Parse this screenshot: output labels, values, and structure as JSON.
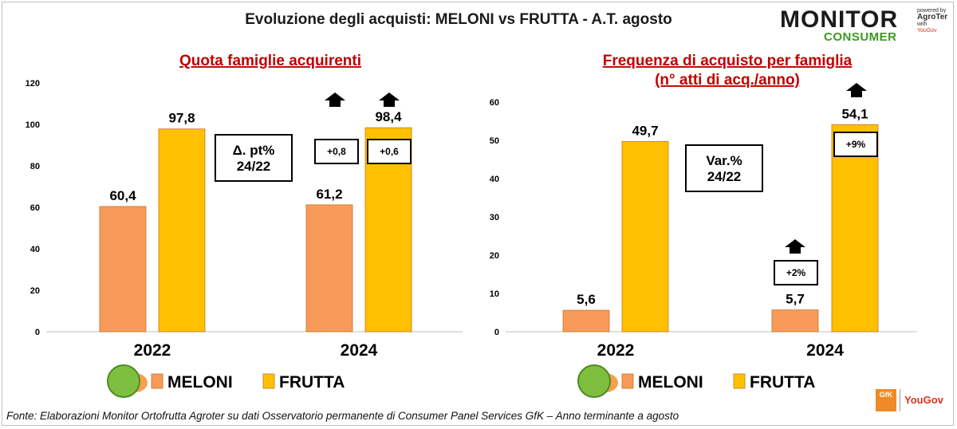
{
  "title": "Evoluzione degli acquisti: MELONI vs FRUTTA  - A.T. agosto",
  "logo": {
    "main": "MONITOR",
    "sub": "CONSUMER",
    "powered": "powered by",
    "brand": "AgroTer",
    "with": "with",
    "partner": "YouGov"
  },
  "footer": "Fonte: Elaborazioni Monitor Ortofrutta Agroter su dati Osservatorio permanente di Consumer Panel Services GfK  – Anno terminante a agosto",
  "brands": {
    "gfk": "GfK",
    "yougov": "YouGov"
  },
  "colors": {
    "meloni": "#f79a5a",
    "frutta": "#ffc000",
    "title_red": "#c00000"
  },
  "chart_data": [
    {
      "type": "bar",
      "title": "Quota famiglie acquirenti",
      "categories": [
        "2022",
        "2024"
      ],
      "series": [
        {
          "name": "MELONI",
          "values": [
            60.4,
            61.2
          ],
          "labels": [
            "60,4",
            "61,2"
          ]
        },
        {
          "name": "FRUTTA",
          "values": [
            97.8,
            98.4
          ],
          "labels": [
            "97,8",
            "98,4"
          ]
        }
      ],
      "ylim": [
        0,
        120
      ],
      "yticks": [
        0,
        20,
        40,
        60,
        80,
        100,
        120
      ],
      "changes": [
        "+0,8",
        "+0,6"
      ],
      "note": [
        "Δ. pt%",
        "24/22"
      ],
      "legend": [
        "MELONI",
        "FRUTTA"
      ]
    },
    {
      "type": "bar",
      "title": "Frequenza di acquisto per famiglia",
      "subtitle": "(n° atti di acq./anno)",
      "categories": [
        "2022",
        "2024"
      ],
      "series": [
        {
          "name": "MELONI",
          "values": [
            5.6,
            5.7
          ],
          "labels": [
            "5,6",
            "5,7"
          ]
        },
        {
          "name": "FRUTTA",
          "values": [
            49.7,
            54.1
          ],
          "labels": [
            "49,7",
            "54,1"
          ]
        }
      ],
      "ylim": [
        0,
        60
      ],
      "yticks": [
        0,
        10,
        20,
        30,
        40,
        50,
        60
      ],
      "changes": [
        "+2%",
        "+9%"
      ],
      "note": [
        "Var.%",
        "24/22"
      ],
      "legend": [
        "MELONI",
        "FRUTTA"
      ]
    }
  ]
}
